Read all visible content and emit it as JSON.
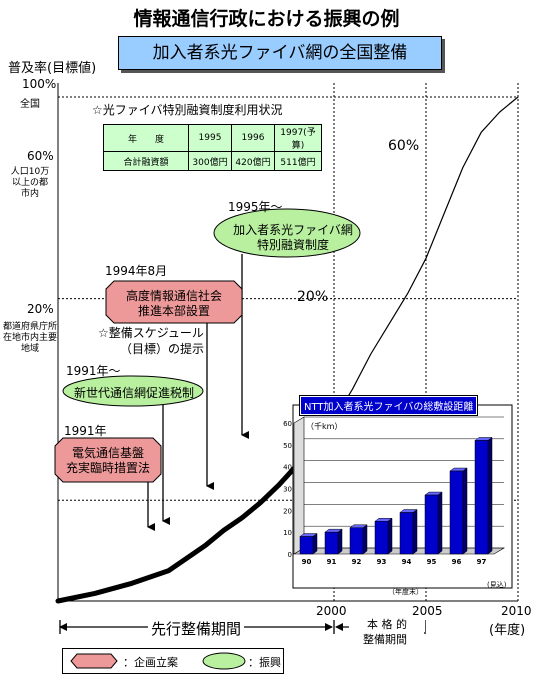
{
  "title": "情報通信行政における振興の例",
  "subtitle": "加入者系光ファイバ網の全国整備",
  "colors": {
    "plan": "#ee9999",
    "promotion": "#b8f0a0",
    "subtitle_bg": "#99ccff",
    "inset_bars": "#0000cc",
    "table_bg": "#ccffcc"
  },
  "chart_data": [
    {
      "type": "line",
      "title": "加入者系光ファイバ網の全国整備",
      "ylabel": "普及率(目標値)",
      "xlabel": "(年度)",
      "x_ticks": [
        "2000",
        "2005",
        "2010"
      ],
      "y_ticks": [
        "100%",
        "60%",
        "20%"
      ],
      "xlim": [
        1985,
        2010
      ],
      "ylim": [
        0,
        100
      ],
      "y_tick_notes": [
        {
          "value": 100,
          "note": "全国"
        },
        {
          "value": 60,
          "note": "人口10万以上の都市内"
        },
        {
          "value": 20,
          "note": "都道府県庁所在地市内主要地域"
        }
      ],
      "series": [
        {
          "style": "actual-thick",
          "x": [
            1985,
            1987,
            1989,
            1991,
            1992,
            1993,
            1994,
            1995,
            1996,
            1997,
            1998,
            1999,
            2000
          ],
          "y": [
            0,
            1.5,
            3.5,
            6,
            8.5,
            11,
            14,
            16.5,
            19.5,
            23,
            27,
            31,
            36
          ]
        },
        {
          "style": "target-thin",
          "x": [
            2000,
            2001,
            2002,
            2003,
            2004,
            2005,
            2006,
            2007,
            2008,
            2009,
            2010
          ],
          "y": [
            36,
            42,
            49,
            55,
            61,
            68,
            77,
            86,
            93,
            97,
            100
          ]
        }
      ],
      "annotations": [
        "60%",
        "20%"
      ],
      "gridlines": [
        100,
        60,
        20
      ]
    },
    {
      "type": "bar",
      "title": "NTT加入者系光ファイバの総敷設距離",
      "ylabel": "（千km）",
      "xlabel": "（年度末）",
      "categories": [
        "90",
        "91",
        "92",
        "93",
        "94",
        "95",
        "96",
        "97"
      ],
      "y_ticks": [
        "0",
        "10",
        "20",
        "30",
        "40",
        "50",
        "60"
      ],
      "ylim": [
        0,
        60
      ],
      "values": [
        8,
        10,
        12,
        15,
        19,
        27,
        38,
        52
      ],
      "note": "(見込)"
    }
  ],
  "subsidy": {
    "title": "☆光ファイバ特別融資制度利用状況",
    "header": [
      "年　　度",
      "1995",
      "1996",
      "1997(予算)"
    ],
    "row": [
      "合計融資額",
      "300億円",
      "420億円",
      "511億円"
    ]
  },
  "callouts": {
    "c1991_date": "1991年",
    "c1991_text": [
      "電気通信基盤",
      "充実臨時措置法"
    ],
    "c1991b_date": "1991年〜",
    "c1991b_text": "新世代通信網促進税制",
    "c1994_date": "1994年8月",
    "c1994_text": [
      "高度情報通信社会",
      "推進本部設置"
    ],
    "schedule_note": [
      "☆整備スケジュール",
      "（目標）の提示"
    ],
    "c1995_date": "1995年〜",
    "c1995_text": [
      "加入者系光ファイバ網",
      "特別融資制度"
    ]
  },
  "periods": {
    "advance": "先行整備期間",
    "full": [
      "本 格 的",
      "整備期間"
    ]
  },
  "legend": {
    "plan": "：企画立案",
    "promotion": "：振興"
  }
}
